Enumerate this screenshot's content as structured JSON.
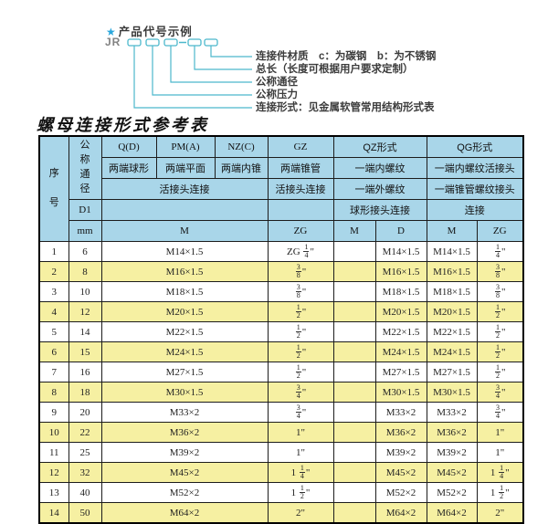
{
  "colors": {
    "header_bg": "#a9d6e9",
    "row_alt_bg": "#f6f0a2",
    "accent": "#4cb8cc",
    "star": "#2aa7dc",
    "border": "#1c1c1c"
  },
  "diagram": {
    "star_icon": "★",
    "title": "产品代号示例",
    "prefix": "JR",
    "labels": [
      "连接件材质　c：为碳钢　b：为不锈钢",
      "总长（长度可根据用户要求定制）",
      "公称通径",
      "公称压力",
      "连接形式：见金属软管常用结构形式表"
    ]
  },
  "table": {
    "title": "螺母连接形式参考表",
    "header": {
      "seq": "序号",
      "nominal_diameter": "公称通径",
      "d1": "D1",
      "mm": "mm",
      "groups": [
        "Q(D)",
        "PM(A)",
        "NZ(C)",
        "GZ",
        "QZ形式",
        "QG形式"
      ],
      "types": [
        "两端球形",
        "两端平面",
        "两端内锥",
        "两端锥管",
        "一端内螺纹",
        "一端内螺纹活接头"
      ],
      "connections": [
        "活接头连接",
        "活接头连接",
        "一端外螺纹",
        "一端锥管螺纹接头"
      ],
      "row4": [
        "球形接头连接",
        "连接"
      ],
      "units": [
        "M",
        "ZG",
        "M",
        "D",
        "M",
        "ZG"
      ]
    },
    "rows": [
      {
        "no": "1",
        "mm": "6",
        "m": "M14×1.5",
        "gz": "ZG 1/4\"",
        "qz_m": "",
        "qz_d": "M14×1.5",
        "qg_m": "M14×1.5",
        "qg_zg": "1/4\""
      },
      {
        "no": "2",
        "mm": "8",
        "m": "M16×1.5",
        "gz": "3/8\"",
        "qz_m": "",
        "qz_d": "M16×1.5",
        "qg_m": "M16×1.5",
        "qg_zg": "3/8\""
      },
      {
        "no": "3",
        "mm": "10",
        "m": "M18×1.5",
        "gz": "3/8\"",
        "qz_m": "",
        "qz_d": "M18×1.5",
        "qg_m": "M18×1.5",
        "qg_zg": "3/8\""
      },
      {
        "no": "4",
        "mm": "12",
        "m": "M20×1.5",
        "gz": "1/2\"",
        "qz_m": "",
        "qz_d": "M20×1.5",
        "qg_m": "M20×1.5",
        "qg_zg": "1/2\""
      },
      {
        "no": "5",
        "mm": "14",
        "m": "M22×1.5",
        "gz": "1/2\"",
        "qz_m": "",
        "qz_d": "M22×1.5",
        "qg_m": "M22×1.5",
        "qg_zg": "1/2\""
      },
      {
        "no": "6",
        "mm": "15",
        "m": "M24×1.5",
        "gz": "1/2\"",
        "qz_m": "",
        "qz_d": "M24×1.5",
        "qg_m": "M24×1.5",
        "qg_zg": "1/2\""
      },
      {
        "no": "7",
        "mm": "16",
        "m": "M27×1.5",
        "gz": "1/2\"",
        "qz_m": "",
        "qz_d": "M27×1.5",
        "qg_m": "M27×1.5",
        "qg_zg": "1/2\""
      },
      {
        "no": "8",
        "mm": "18",
        "m": "M30×1.5",
        "gz": "3/4\"",
        "qz_m": "",
        "qz_d": "M30×1.5",
        "qg_m": "M30×1.5",
        "qg_zg": "3/4\""
      },
      {
        "no": "9",
        "mm": "20",
        "m": "M33×2",
        "gz": "3/4\"",
        "qz_m": "",
        "qz_d": "M33×2",
        "qg_m": "M33×2",
        "qg_zg": "3/4\""
      },
      {
        "no": "10",
        "mm": "22",
        "m": "M36×2",
        "gz": "1\"",
        "qz_m": "",
        "qz_d": "M36×2",
        "qg_m": "M36×2",
        "qg_zg": "1\""
      },
      {
        "no": "11",
        "mm": "25",
        "m": "M39×2",
        "gz": "1\"",
        "qz_m": "",
        "qz_d": "M39×2",
        "qg_m": "M39×2",
        "qg_zg": "1\""
      },
      {
        "no": "12",
        "mm": "32",
        "m": "M45×2",
        "gz": "1 1/4\"",
        "qz_m": "",
        "qz_d": "M45×2",
        "qg_m": "M45×2",
        "qg_zg": "1 1/4\""
      },
      {
        "no": "13",
        "mm": "40",
        "m": "M52×2",
        "gz": "1 1/2\"",
        "qz_m": "",
        "qz_d": "M52×2",
        "qg_m": "M52×2",
        "qg_zg": "1 1/2\""
      },
      {
        "no": "14",
        "mm": "50",
        "m": "M64×2",
        "gz": "2\"",
        "qz_m": "",
        "qz_d": "M64×2",
        "qg_m": "M64×2",
        "qg_zg": "2\""
      }
    ]
  }
}
